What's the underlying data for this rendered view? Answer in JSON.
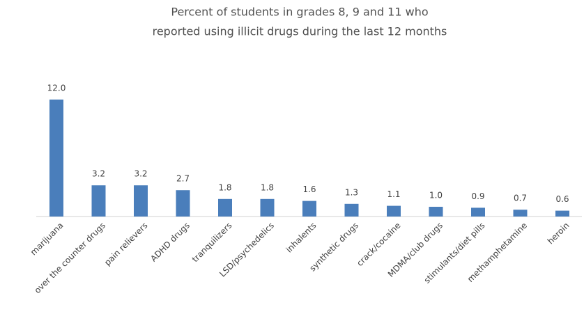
{
  "chart_data": {
    "type": "bar",
    "title": [
      "Percent of students in grades 8, 9 and 11 who",
      "reported using illicit drugs during the last 12 months"
    ],
    "categories": [
      "marijuana",
      "over the counter drugs",
      "pain relievers",
      "ADHD drugs",
      "tranquilizers",
      "LSD/psychedelics",
      "inhalents",
      "synthetic drugs",
      "crack/cocaine",
      "MDMA/club drugs",
      "stimulants/diet pills",
      "methamphetamine",
      "heroin"
    ],
    "values": [
      12.0,
      3.2,
      3.2,
      2.7,
      1.8,
      1.8,
      1.6,
      1.3,
      1.1,
      1.0,
      0.9,
      0.7,
      0.6
    ],
    "value_labels": [
      "12.0",
      "3.2",
      "3.2",
      "2.7",
      "1.8",
      "1.8",
      "1.6",
      "1.3",
      "1.1",
      "1.0",
      "0.9",
      "0.7",
      "0.6"
    ],
    "color": "#4a7ebb"
  }
}
